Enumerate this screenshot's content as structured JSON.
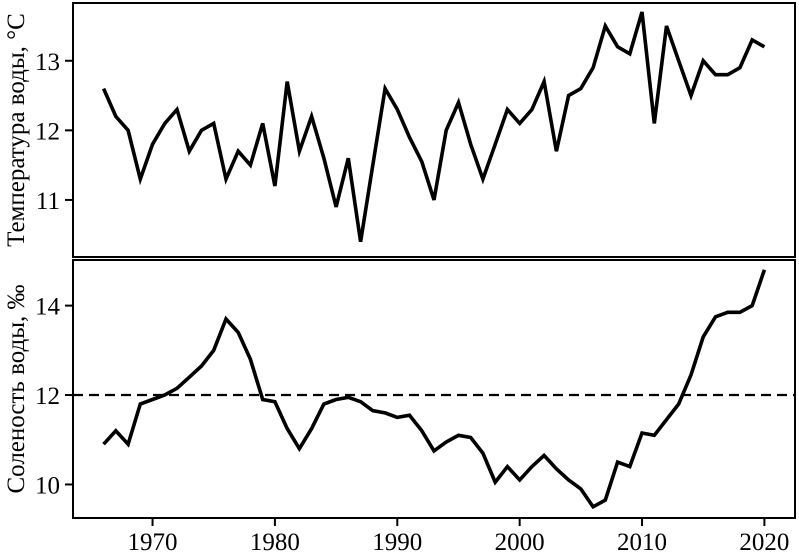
{
  "figure": {
    "background": "#ffffff",
    "line_color": "#000000",
    "xlim": [
      1963.5,
      2022.5
    ],
    "xticks": [
      1970,
      1980,
      1990,
      2000,
      2010,
      2020
    ]
  },
  "chart_data": [
    {
      "type": "line",
      "panel": "top",
      "title": "",
      "ylabel": "Температура воды, °C",
      "xlabel": "",
      "legend": "none",
      "grid": false,
      "line_color": "#000000",
      "ylim": [
        10.18,
        13.83
      ],
      "yticks": [
        11,
        12,
        13
      ],
      "x": [
        1966,
        1967,
        1968,
        1969,
        1970,
        1971,
        1972,
        1973,
        1974,
        1975,
        1976,
        1977,
        1978,
        1979,
        1980,
        1981,
        1982,
        1983,
        1984,
        1985,
        1986,
        1987,
        1988,
        1989,
        1990,
        1991,
        1992,
        1993,
        1994,
        1995,
        1996,
        1997,
        1998,
        1999,
        2000,
        2001,
        2002,
        2003,
        2004,
        2005,
        2006,
        2007,
        2008,
        2009,
        2010,
        2011,
        2012,
        2013,
        2014,
        2015,
        2016,
        2017,
        2018,
        2019,
        2020
      ],
      "values": [
        12.6,
        12.2,
        12.0,
        11.3,
        11.8,
        12.1,
        12.3,
        11.7,
        12.0,
        12.1,
        11.3,
        11.7,
        11.5,
        12.1,
        11.2,
        12.7,
        11.7,
        12.2,
        11.6,
        10.9,
        11.6,
        10.4,
        11.5,
        12.6,
        12.3,
        11.9,
        11.55,
        11.0,
        12.0,
        12.4,
        11.8,
        11.3,
        11.8,
        12.3,
        12.1,
        12.3,
        12.7,
        11.7,
        12.5,
        12.6,
        12.9,
        13.5,
        13.2,
        13.1,
        13.7,
        12.1,
        13.5,
        13.0,
        12.5,
        13.0,
        12.8,
        12.8,
        12.9,
        13.3,
        13.2
      ]
    },
    {
      "type": "line",
      "panel": "bottom",
      "title": "",
      "ylabel": "Соленость воды, ‰",
      "xlabel": "",
      "legend": "none",
      "grid": false,
      "line_color": "#000000",
      "reference_line_y": 12,
      "reference_line_style": "dashed",
      "ylim": [
        9.25,
        15.02
      ],
      "yticks": [
        10,
        12,
        14
      ],
      "xticks": [
        1970,
        1980,
        1990,
        2000,
        2010,
        2020
      ],
      "x": [
        1966,
        1967,
        1968,
        1969,
        1970,
        1971,
        1972,
        1973,
        1974,
        1975,
        1976,
        1977,
        1978,
        1979,
        1980,
        1981,
        1982,
        1983,
        1984,
        1985,
        1986,
        1987,
        1988,
        1989,
        1990,
        1991,
        1992,
        1993,
        1994,
        1995,
        1996,
        1997,
        1998,
        1999,
        2000,
        2001,
        2002,
        2003,
        2004,
        2005,
        2006,
        2007,
        2008,
        2009,
        2010,
        2011,
        2012,
        2013,
        2014,
        2015,
        2016,
        2017,
        2018,
        2019,
        2020
      ],
      "values": [
        10.9,
        11.2,
        10.9,
        11.8,
        11.9,
        12.0,
        12.15,
        12.4,
        12.65,
        13.0,
        13.7,
        13.4,
        12.8,
        11.9,
        11.85,
        11.25,
        10.8,
        11.25,
        11.8,
        11.9,
        11.95,
        11.85,
        11.65,
        11.6,
        11.5,
        11.55,
        11.2,
        10.75,
        10.95,
        11.1,
        11.05,
        10.7,
        10.05,
        10.4,
        10.1,
        10.4,
        10.65,
        10.35,
        10.1,
        9.9,
        9.5,
        9.65,
        10.5,
        10.4,
        11.15,
        11.1,
        11.45,
        11.8,
        12.45,
        13.3,
        13.75,
        13.85,
        13.85,
        14.0,
        14.8
      ]
    }
  ]
}
